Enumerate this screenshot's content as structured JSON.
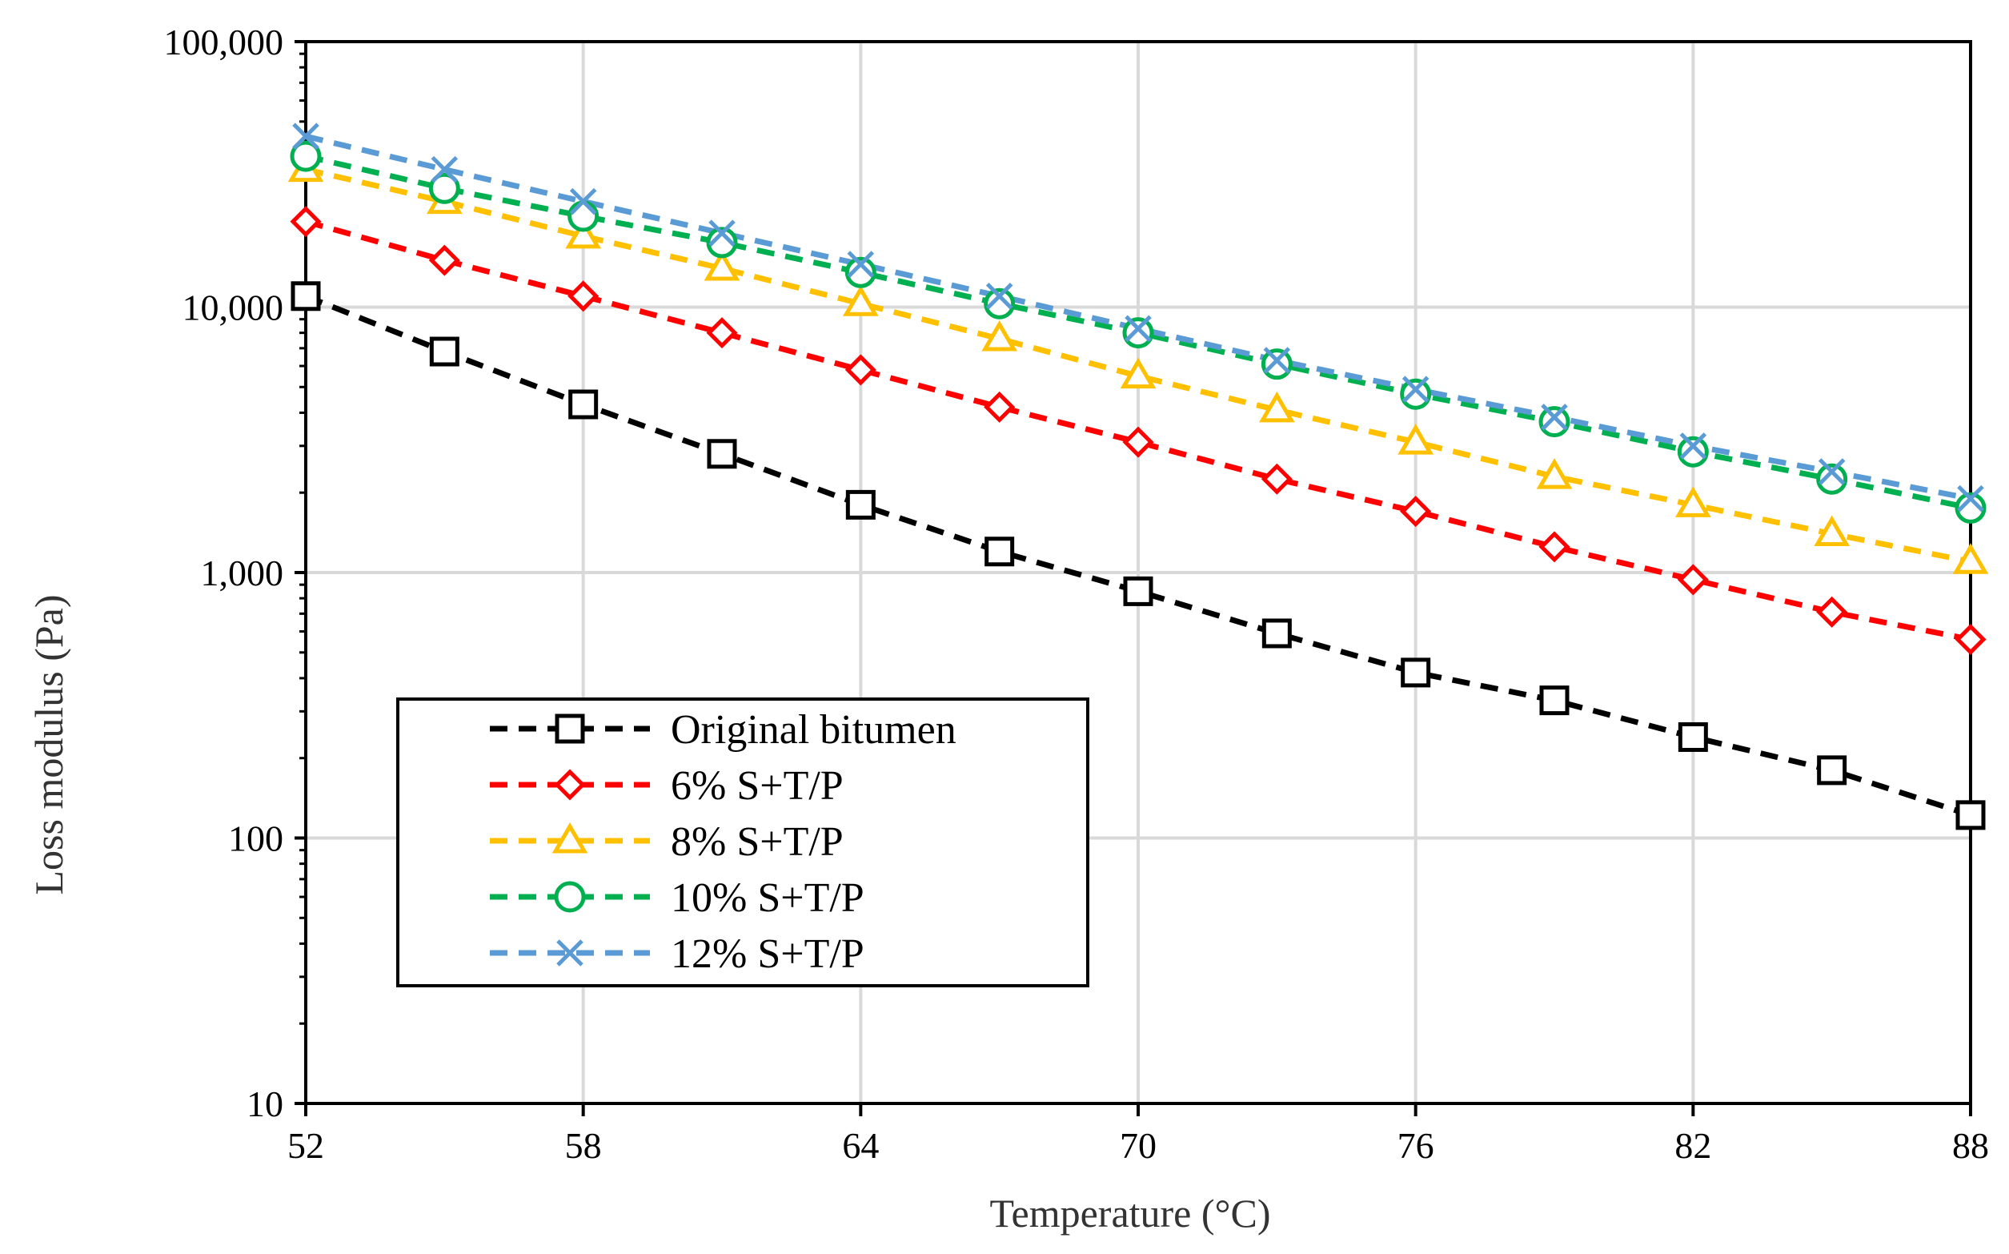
{
  "chart_data": {
    "type": "line",
    "title": "",
    "xlabel": "Temperature (°C)",
    "ylabel": "Loss modulus (Pa)",
    "xlim": [
      52,
      88
    ],
    "ylim": [
      10,
      100000
    ],
    "yscale": "log",
    "grid": true,
    "legend_position": "lower-left",
    "x_ticks": [
      52,
      58,
      64,
      70,
      76,
      82,
      88
    ],
    "x_tick_labels": [
      "52",
      "58",
      "64",
      "70",
      "76",
      "82",
      "88"
    ],
    "y_ticks": [
      10,
      100,
      1000,
      10000,
      100000
    ],
    "y_tick_labels": [
      "10",
      "100",
      "1,000",
      "10,000",
      "100,000"
    ],
    "x": [
      52,
      55,
      58,
      61,
      64,
      67,
      70,
      73,
      76,
      79,
      82,
      85,
      88
    ],
    "series": [
      {
        "name": "Original bitumen",
        "color": "#000000",
        "marker": "square",
        "values": [
          11000,
          6800,
          4300,
          2800,
          1800,
          1200,
          850,
          590,
          420,
          330,
          240,
          180,
          122
        ]
      },
      {
        "name": "6% S+T/P",
        "color": "#ff0000",
        "marker": "diamond",
        "values": [
          21000,
          15000,
          11000,
          8000,
          5800,
          4200,
          3100,
          2250,
          1700,
          1250,
          940,
          710,
          560
        ]
      },
      {
        "name": "8% S+T/P",
        "color": "#ffc000",
        "marker": "triangle",
        "values": [
          33000,
          25000,
          18500,
          14000,
          10300,
          7600,
          5500,
          4100,
          3100,
          2300,
          1800,
          1400,
          1100
        ]
      },
      {
        "name": "10% S+T/P",
        "color": "#00b050",
        "marker": "circle",
        "values": [
          37000,
          28000,
          22000,
          17500,
          13500,
          10300,
          8000,
          6100,
          4700,
          3700,
          2850,
          2250,
          1750
        ]
      },
      {
        "name": "12% S+T/P",
        "color": "#5b9bd5",
        "marker": "cross",
        "values": [
          44000,
          33000,
          25000,
          19000,
          14500,
          11000,
          8300,
          6300,
          4900,
          3850,
          3000,
          2400,
          1900
        ]
      }
    ]
  }
}
